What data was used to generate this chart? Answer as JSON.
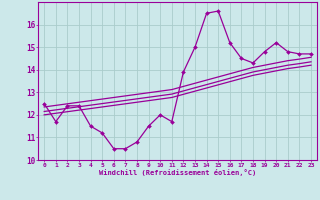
{
  "hours": [
    0,
    1,
    2,
    3,
    4,
    5,
    6,
    7,
    8,
    9,
    10,
    11,
    12,
    13,
    14,
    15,
    16,
    17,
    18,
    19,
    20,
    21,
    22,
    23
  ],
  "windchill": [
    12.5,
    11.7,
    12.4,
    12.4,
    11.5,
    11.2,
    10.5,
    10.5,
    10.8,
    11.5,
    12.0,
    11.7,
    13.9,
    15.0,
    16.5,
    16.6,
    15.2,
    14.5,
    14.3,
    14.8,
    15.2,
    14.8,
    14.7,
    14.7
  ],
  "temp_line1": [
    12.0,
    12.07,
    12.14,
    12.21,
    12.28,
    12.35,
    12.42,
    12.49,
    12.56,
    12.63,
    12.7,
    12.77,
    12.91,
    13.05,
    13.19,
    13.33,
    13.47,
    13.61,
    13.75,
    13.85,
    13.95,
    14.05,
    14.12,
    14.2
  ],
  "temp_line2": [
    12.15,
    12.22,
    12.29,
    12.36,
    12.43,
    12.5,
    12.57,
    12.64,
    12.71,
    12.78,
    12.85,
    12.92,
    13.06,
    13.2,
    13.34,
    13.48,
    13.62,
    13.76,
    13.9,
    14.0,
    14.1,
    14.2,
    14.27,
    14.35
  ],
  "temp_line3": [
    12.35,
    12.42,
    12.49,
    12.56,
    12.63,
    12.7,
    12.77,
    12.84,
    12.91,
    12.98,
    13.05,
    13.12,
    13.26,
    13.4,
    13.54,
    13.68,
    13.82,
    13.96,
    14.1,
    14.2,
    14.3,
    14.4,
    14.47,
    14.55
  ],
  "main_color": "#990099",
  "bg_color": "#cce8ea",
  "grid_color": "#aacccc",
  "xlabel": "Windchill (Refroidissement éolien,°C)",
  "ylim": [
    10.0,
    17.0
  ],
  "xlim": [
    -0.5,
    23.5
  ],
  "yticks": [
    10,
    11,
    12,
    13,
    14,
    15,
    16
  ],
  "xticks": [
    0,
    1,
    2,
    3,
    4,
    5,
    6,
    7,
    8,
    9,
    10,
    11,
    12,
    13,
    14,
    15,
    16,
    17,
    18,
    19,
    20,
    21,
    22,
    23
  ]
}
